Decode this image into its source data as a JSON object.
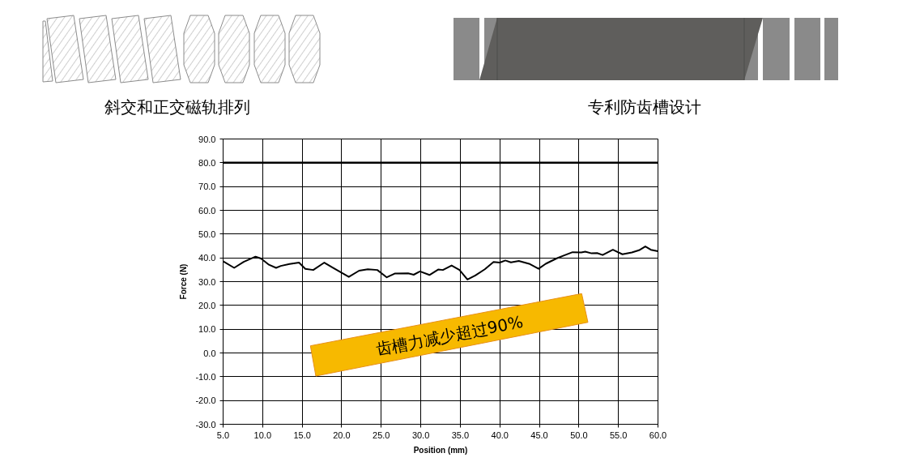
{
  "chart_data": {
    "type": "line",
    "xlabel": "Position (mm)",
    "ylabel": "Force (N)",
    "annotations": [
      "斜交和正交磁轨排列",
      "专利防齿槽设计",
      "齿槽力减少超过90%"
    ],
    "xlim": [
      5,
      60
    ],
    "ylim": [
      -30,
      90
    ],
    "xticks": [
      {
        "value": 5,
        "label": "5.0"
      },
      {
        "value": 10,
        "label": "10.0"
      },
      {
        "value": 15,
        "label": "15.0"
      },
      {
        "value": 20,
        "label": "20.0"
      },
      {
        "value": 25,
        "label": "25.0"
      },
      {
        "value": 30,
        "label": "30.0"
      },
      {
        "value": 35,
        "label": "35.0"
      },
      {
        "value": 40,
        "label": "40.0"
      },
      {
        "value": 45,
        "label": "45.0"
      },
      {
        "value": 50,
        "label": "50.0"
      },
      {
        "value": 55,
        "label": "55.0"
      },
      {
        "value": 60,
        "label": "60.0"
      }
    ],
    "yticks": [
      {
        "value": -30,
        "label": "-30.0"
      },
      {
        "value": -20,
        "label": "-20.0"
      },
      {
        "value": -10,
        "label": "-10.0"
      },
      {
        "value": 0,
        "label": "0.0"
      },
      {
        "value": 10,
        "label": "10.0"
      },
      {
        "value": 20,
        "label": "20.0"
      },
      {
        "value": 30,
        "label": "30.0"
      },
      {
        "value": 40,
        "label": "40.0"
      },
      {
        "value": 50,
        "label": "50.0"
      },
      {
        "value": 60,
        "label": "60.0"
      },
      {
        "value": 70,
        "label": "70.0"
      },
      {
        "value": 80,
        "label": "80.0"
      },
      {
        "value": 90,
        "label": "90.0"
      }
    ],
    "grid": true,
    "line_style": "solid",
    "ref_lines": [
      {
        "axis": "y",
        "value": 80,
        "color": "#000000"
      }
    ],
    "series": [
      {
        "color": "#000000",
        "x": [
          5.0,
          6.4,
          7.6,
          9.1,
          9.8,
          10.8,
          11.7,
          12.3,
          13.4,
          14.6,
          15.4,
          16.4,
          17.8,
          18.8,
          20.9,
          22.2,
          23.3,
          24.5,
          25.7,
          26.7,
          28.4,
          29.1,
          29.9,
          31.1,
          32.2,
          32.8,
          33.9,
          34.9,
          35.9,
          36.9,
          38.1,
          39.2,
          40.0,
          40.7,
          41.4,
          42.4,
          43.8,
          44.9,
          45.8,
          47.2,
          48.2,
          49.2,
          50.3,
          50.8,
          51.6,
          52.3,
          53.0,
          54.3,
          55.5,
          56.7,
          57.6,
          58.4,
          59.1,
          60.0
        ],
        "values": [
          38.6,
          35.8,
          38.3,
          40.5,
          39.7,
          37.1,
          35.8,
          36.6,
          37.4,
          38.0,
          35.4,
          34.9,
          38.0,
          36.0,
          32.0,
          34.6,
          35.2,
          34.9,
          31.8,
          33.4,
          33.5,
          32.9,
          34.3,
          32.8,
          35.1,
          34.9,
          36.8,
          34.9,
          30.9,
          32.6,
          35.2,
          38.3,
          38.0,
          38.9,
          38.1,
          38.7,
          37.4,
          35.4,
          37.5,
          39.8,
          41.1,
          42.4,
          42.3,
          42.6,
          41.9,
          42.0,
          41.2,
          43.4,
          41.5,
          42.3,
          43.2,
          44.8,
          43.4,
          42.8
        ]
      }
    ]
  }
}
